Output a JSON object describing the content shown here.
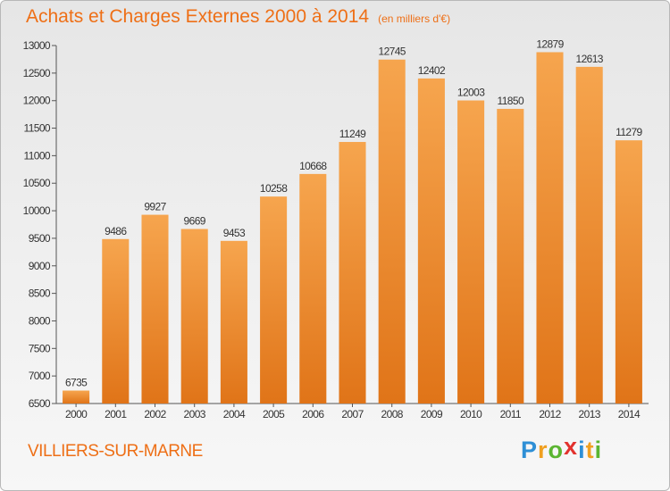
{
  "header": {
    "title": "Achats et Charges Externes 2000 à 2014",
    "unit": "(en milliers d'€)"
  },
  "footer": {
    "town": "VILLIERS-SUR-MARNE",
    "logo_letters": [
      {
        "char": "P",
        "color": "#2e8fd6"
      },
      {
        "char": "r",
        "color": "#f0a020"
      },
      {
        "char": "o",
        "color": "#5bb531"
      },
      {
        "char": "x",
        "color": "#e2322e"
      },
      {
        "char": "i",
        "color": "#2e8fd6"
      },
      {
        "char": "t",
        "color": "#f0a020"
      },
      {
        "char": "i",
        "color": "#5bb531"
      }
    ]
  },
  "chart_data": {
    "type": "bar",
    "categories": [
      "2000",
      "2001",
      "2002",
      "2003",
      "2004",
      "2005",
      "2006",
      "2007",
      "2008",
      "2009",
      "2010",
      "2011",
      "2012",
      "2013",
      "2014"
    ],
    "values": [
      6735,
      9486,
      9927,
      9669,
      9453,
      10258,
      10668,
      11249,
      12745,
      12402,
      12003,
      11850,
      12879,
      12613,
      11279
    ],
    "ylim": [
      6500,
      13000
    ],
    "yticks": [
      6500,
      7000,
      7500,
      8000,
      8500,
      9000,
      9500,
      10000,
      10500,
      11000,
      11500,
      12000,
      12500,
      13000
    ],
    "grid": false,
    "legend": "none",
    "bar_color_top": "#f6a54e",
    "bar_color_bottom": "#e07418"
  }
}
